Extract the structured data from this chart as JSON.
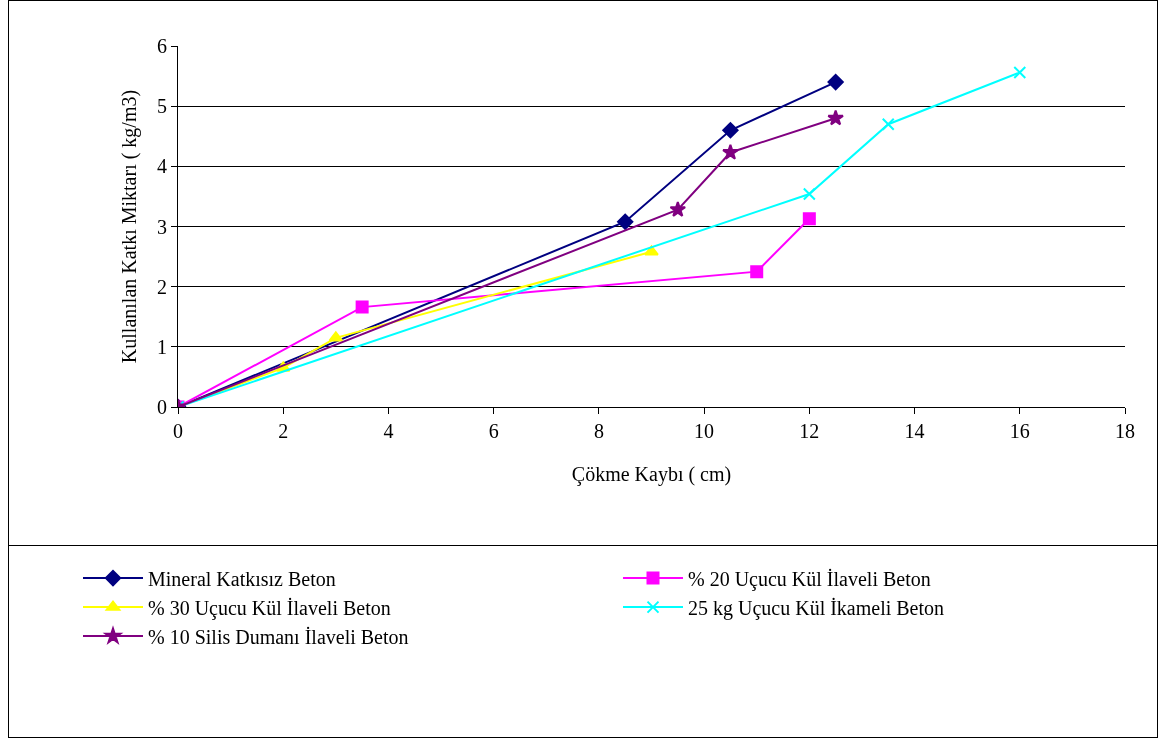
{
  "chart_data": {
    "type": "line",
    "xlabel": "Çökme Kaybı ( cm)",
    "ylabel": "Kullanılan Katkı Miktarı ( kg/m3)",
    "xlim": [
      0,
      18
    ],
    "xticks": [
      0,
      2,
      4,
      6,
      8,
      10,
      12,
      14,
      16,
      18
    ],
    "ylim": [
      0,
      6
    ],
    "yticks": [
      0,
      1,
      2,
      3,
      4,
      5,
      6
    ],
    "grid": "y",
    "legend": "bottom",
    "series": [
      {
        "name": "Mineral Katkısız Beton",
        "color": "#000080",
        "marker": "diamond",
        "x": [
          0,
          8.5,
          10.5,
          12.5
        ],
        "values": [
          0,
          3.08,
          4.6,
          5.4
        ]
      },
      {
        "name": "% 20 Uçucu Kül İlaveli Beton",
        "color": "#ff00ff",
        "marker": "square",
        "x": [
          0,
          3.5,
          11,
          12
        ],
        "values": [
          0,
          1.66,
          2.25,
          3.13
        ]
      },
      {
        "name": "% 30 Uçucu Kül İlaveli Beton",
        "color": "#ffff00",
        "marker": "triangle",
        "x": [
          0,
          2,
          3,
          9
        ],
        "values": [
          0,
          0.65,
          1.15,
          2.58
        ]
      },
      {
        "name": "25 kg Uçucu Kül İkameli Beton",
        "color": "#00ffff",
        "marker": "cross",
        "x": [
          0,
          12,
          13.5,
          16
        ],
        "values": [
          0,
          3.54,
          4.7,
          5.56
        ]
      },
      {
        "name": "% 10 Silis Dumanı İlaveli Beton",
        "color": "#800080",
        "marker": "star",
        "x": [
          0,
          9.5,
          10.5,
          12.5
        ],
        "values": [
          0,
          3.28,
          4.23,
          4.8
        ]
      }
    ]
  }
}
